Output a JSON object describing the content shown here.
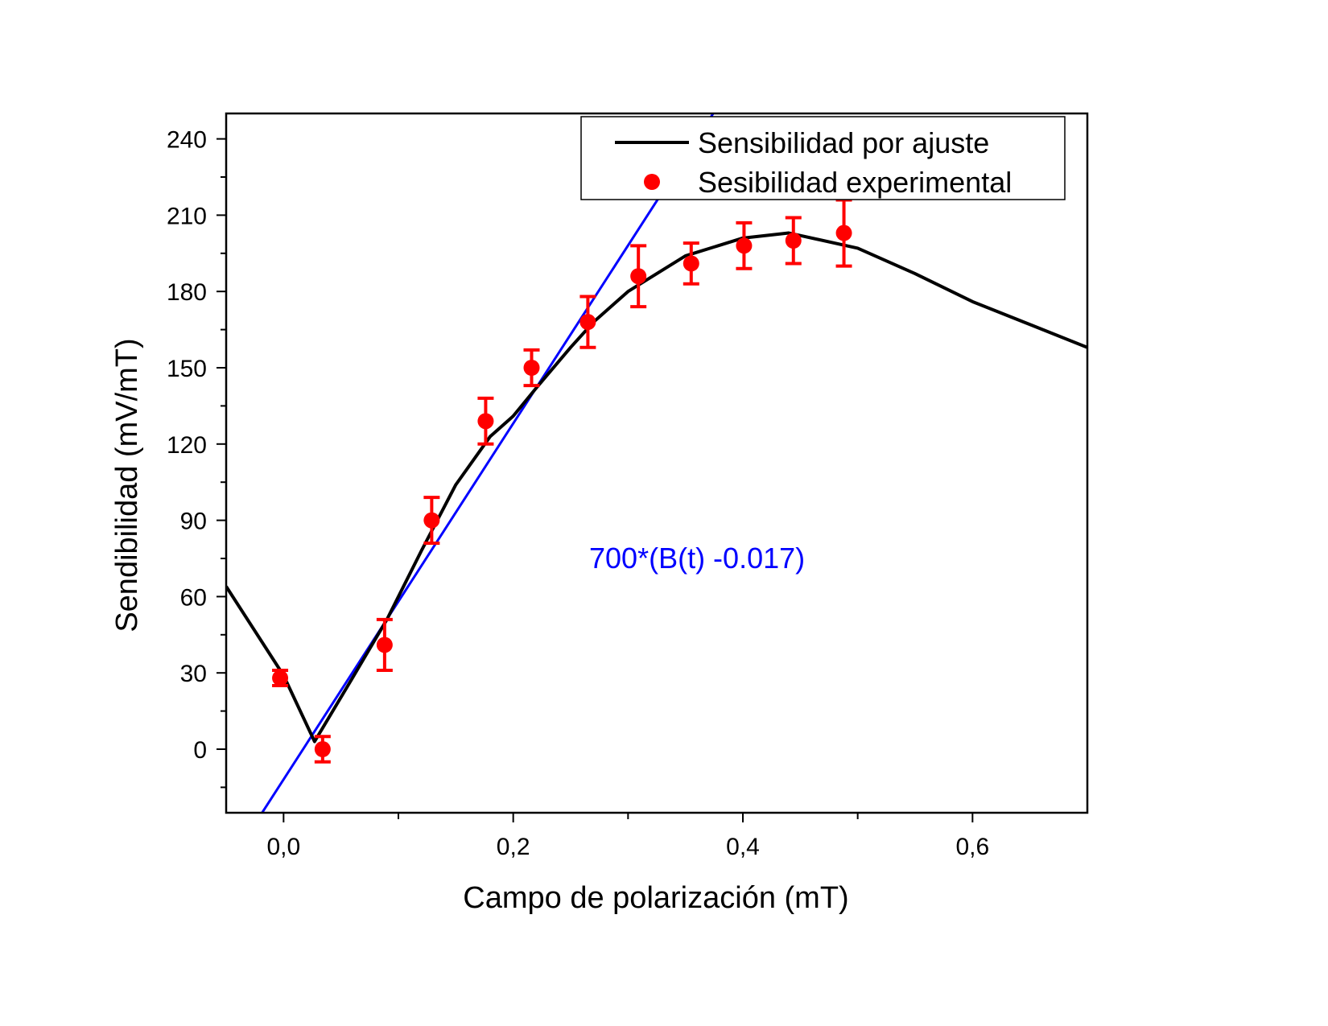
{
  "chart_data": {
    "type": "scatter",
    "title": "",
    "xlabel": "Campo de polarización (mT)",
    "ylabel": "Sendibilidad (mV/mT)",
    "xlim": [
      -0.05,
      0.7
    ],
    "ylim": [
      -25,
      250
    ],
    "xticks": [
      0.0,
      0.2,
      0.4,
      0.6
    ],
    "xtick_labels": [
      "0,0",
      "0,2",
      "0,4",
      "0,6"
    ],
    "xminor": [
      0.1,
      0.3,
      0.5
    ],
    "yticks": [
      0,
      30,
      60,
      90,
      120,
      150,
      180,
      210,
      240
    ],
    "yminor": [
      -15,
      15,
      45,
      75,
      105,
      135,
      165,
      195,
      225
    ],
    "grid": false,
    "legend_position": "top-right",
    "series": [
      {
        "name": "Sensibilidad por ajuste",
        "kind": "line",
        "color": "#000000",
        "x": [
          -0.05,
          0.0,
          0.027,
          0.06,
          0.09,
          0.12,
          0.15,
          0.18,
          0.2,
          0.22,
          0.25,
          0.27,
          0.3,
          0.35,
          0.4,
          0.44,
          0.5,
          0.55,
          0.6,
          0.65,
          0.7
        ],
        "y": [
          64,
          29,
          3,
          28,
          51,
          78,
          104,
          123,
          131,
          142,
          158,
          168,
          180,
          194,
          201,
          203,
          197,
          187,
          176,
          167,
          158
        ]
      },
      {
        "name": "Sesibilidad experimental",
        "kind": "scatter",
        "color": "#ff0000",
        "x": [
          -0.003,
          0.034,
          0.088,
          0.129,
          0.176,
          0.216,
          0.265,
          0.309,
          0.355,
          0.401,
          0.444,
          0.488
        ],
        "y": [
          28,
          0,
          41,
          90,
          129,
          150,
          168,
          186,
          191,
          198,
          200,
          203
        ],
        "yerr": [
          3,
          5,
          10,
          9,
          9,
          7,
          10,
          12,
          8,
          9,
          9,
          13
        ]
      },
      {
        "kind": "line",
        "color": "#0000ff",
        "slope": 700,
        "offset": 0.017,
        "label": "700*(B(t) -0.017)"
      }
    ]
  }
}
